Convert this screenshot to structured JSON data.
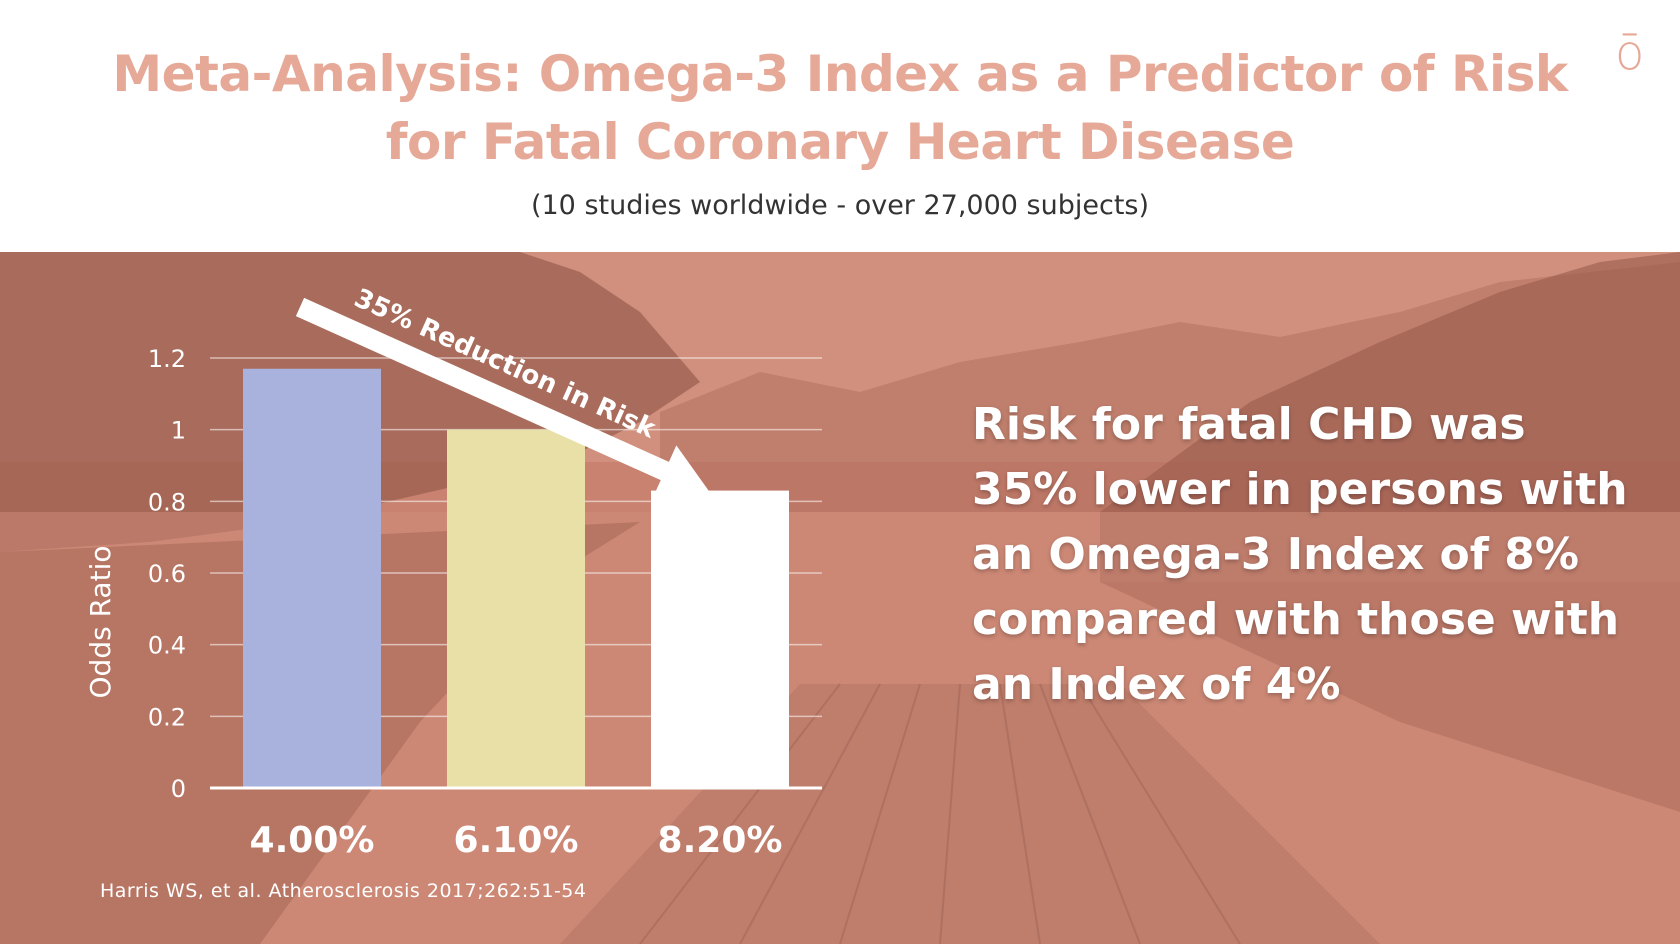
{
  "slide": {
    "title_lines": [
      "Meta-Analysis: Omega-3 Index as a Predictor of Risk",
      "for Fatal Coronary Heart Disease"
    ],
    "subtitle": "(10 studies worldwide - over 27,000 subjects)",
    "logo": "ō",
    "callout_lines": [
      "Risk for fatal CHD was",
      "35% lower in persons with",
      "an Omega-3 Index of 8%",
      "compared with those with",
      "an Index of 4%"
    ],
    "arrow_label": "35% Reduction in Risk",
    "citation": "Harris WS, et al. Atherosclerosis 2017;262:51-54"
  },
  "chart_data": {
    "type": "bar",
    "title": "",
    "xlabel": "",
    "ylabel": "Odds Ratio",
    "categories": [
      "4.00%",
      "6.10%",
      "8.20%"
    ],
    "values": [
      1.17,
      1.0,
      0.83
    ],
    "ylim": [
      0,
      1.2
    ],
    "yticks": [
      0,
      0.2,
      0.4,
      0.6,
      0.8,
      1,
      1.2
    ],
    "ytick_labels": [
      "0",
      "0.2",
      "0.4",
      "0.6",
      "0.8",
      "1",
      "1.2"
    ],
    "bar_colors": [
      "#a8b2dc",
      "#e8e0a6",
      "#ffffff"
    ],
    "grid": true,
    "legend": "none"
  },
  "colors": {
    "title": "#e6a997",
    "overlay": "#c9826f",
    "text_light": "#ffffff",
    "subtitle": "#333333"
  }
}
